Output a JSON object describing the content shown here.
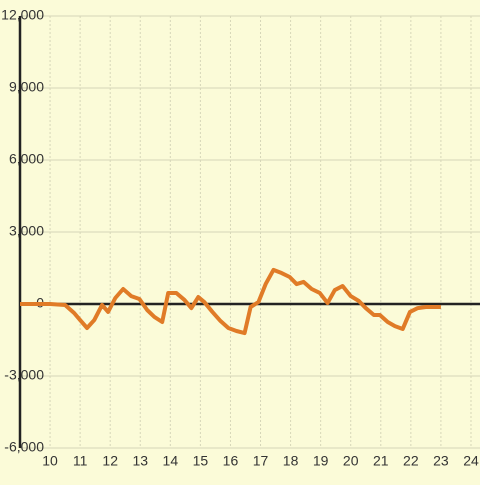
{
  "chart_data": {
    "type": "line",
    "x": [
      9,
      10,
      10.5,
      10.8,
      11,
      11.23,
      11.47,
      11.73,
      11.93,
      12.17,
      12.43,
      12.7,
      12.97,
      13.23,
      13.47,
      13.73,
      13.93,
      14.2,
      14.47,
      14.7,
      14.93,
      15.13,
      15.4,
      15.67,
      15.93,
      16.2,
      16.47,
      16.67,
      16.93,
      17.17,
      17.43,
      17.7,
      17.97,
      18.2,
      18.43,
      18.7,
      18.97,
      19.23,
      19.47,
      19.73,
      20,
      20.27,
      20.5,
      20.77,
      20.97,
      21.23,
      21.47,
      21.73,
      21.97,
      22.23,
      22.5,
      23
    ],
    "series": [
      {
        "color": "#e07b27",
        "values": [
          0,
          0,
          -40,
          -375,
          -670,
          -1000,
          -670,
          -40,
          -330,
          250,
          625,
          330,
          210,
          -250,
          -540,
          -750,
          460,
          460,
          170,
          -170,
          290,
          80,
          -330,
          -710,
          -1000,
          -1125,
          -1210,
          -125,
          80,
          830,
          1420,
          1290,
          1125,
          830,
          920,
          625,
          460,
          40,
          580,
          750,
          330,
          125,
          -170,
          -460,
          -460,
          -750,
          -920,
          -1040,
          -330,
          -170,
          -125,
          -125
        ]
      }
    ],
    "xlim": [
      9,
      24.3
    ],
    "xticks": [
      10,
      11,
      12,
      13,
      14,
      15,
      16,
      17,
      18,
      19,
      20,
      21,
      22,
      23,
      24
    ],
    "ylim": [
      -6000,
      12000
    ],
    "yticks": [
      {
        "value": -6000,
        "label": "-6,000"
      },
      {
        "value": -3000,
        "label": "-3,000"
      },
      0,
      {
        "value": 3000,
        "label": "3,000"
      },
      {
        "value": 6000,
        "label": "6,000"
      },
      {
        "value": 9000,
        "label": "9,000"
      },
      {
        "value": 12000,
        "label": "12,000"
      }
    ],
    "grid": true
  }
}
